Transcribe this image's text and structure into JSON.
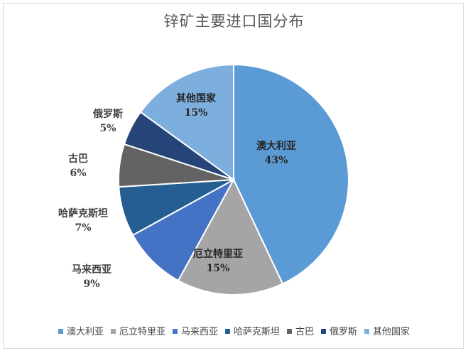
{
  "chart_data": {
    "type": "pie",
    "title": "锌矿主要进口国分布",
    "categories": [
      "澳大利亚",
      "厄立特里亚",
      "马来西亚",
      "哈萨克斯坦",
      "古巴",
      "俄罗斯",
      "其他国家"
    ],
    "values": [
      43,
      15,
      9,
      7,
      6,
      5,
      15
    ],
    "value_labels": [
      "43%",
      "15%",
      "9%",
      "7%",
      "6%",
      "5%",
      "15%"
    ],
    "colors": [
      "#5b9bd5",
      "#a5a5a5",
      "#4472c4",
      "#255e91",
      "#636363",
      "#264478",
      "#7cafdd"
    ],
    "legend_position": "bottom",
    "start_angle": "12 o'clock",
    "direction": "clockwise"
  }
}
